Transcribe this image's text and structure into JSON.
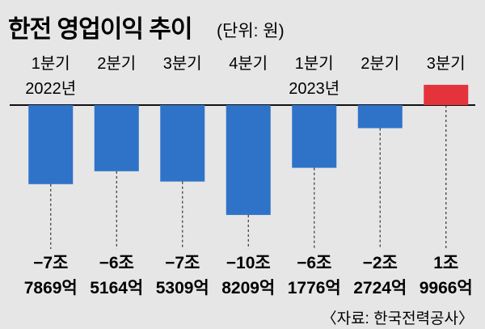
{
  "chart_data": {
    "type": "bar",
    "title": "한전 영업이익 추이",
    "unit": "(단위: 원)",
    "categories": [
      "1분기",
      "2분기",
      "3분기",
      "4분기",
      "1분기",
      "2분기",
      "3분기"
    ],
    "year_labels": [
      "2022년",
      "",
      "",
      "",
      "2023년",
      "",
      ""
    ],
    "values": [
      -7.7869,
      -6.5164,
      -7.5309,
      -10.8209,
      -6.1776,
      -2.2724,
      1.9966
    ],
    "value_labels": [
      [
        "−7조",
        "7869억"
      ],
      [
        "−6조",
        "5164억"
      ],
      [
        "−7조",
        "5309억"
      ],
      [
        "−10조",
        "8209억"
      ],
      [
        "−6조",
        "1776억"
      ],
      [
        "−2조",
        "2724억"
      ],
      [
        "1조",
        "9966억"
      ]
    ],
    "value_unit": "조원",
    "colors": {
      "negative": "#2f73c9",
      "positive": "#e5333b",
      "background": "#e6e6e6"
    },
    "source": "〈자료: 한국전력공사〉"
  }
}
